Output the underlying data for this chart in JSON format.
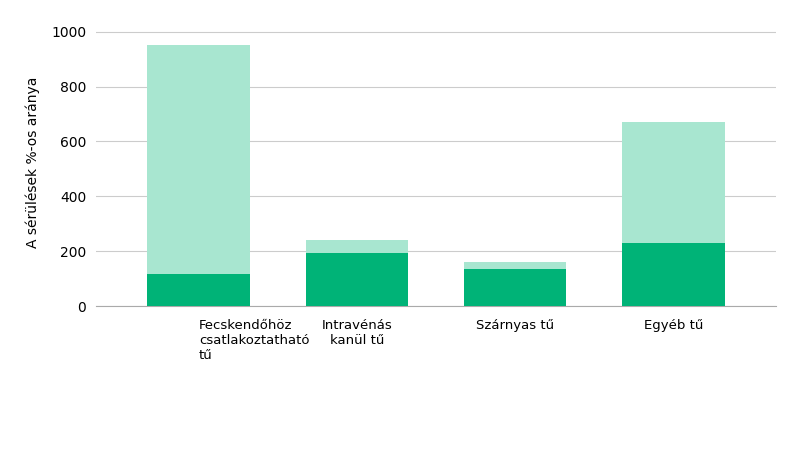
{
  "categories": [
    "Fecskendőhöz\ncsatlakoztatható\ntű",
    "Intravénás\nkanül tű",
    "Szárnyas tű",
    "Egyéb tű"
  ],
  "blood_contaminated": [
    115,
    195,
    135,
    230
  ],
  "not_bloody": [
    835,
    45,
    25,
    440
  ],
  "color_blood": "#00B377",
  "color_not_bloody": "#A8E6D0",
  "ylabel": "A sérülések %-os aránya",
  "ylim": [
    0,
    1050
  ],
  "yticks": [
    0,
    200,
    400,
    600,
    800,
    1000
  ],
  "background_color": "#ffffff",
  "grid_color": "#cccccc",
  "bar_width": 0.65
}
